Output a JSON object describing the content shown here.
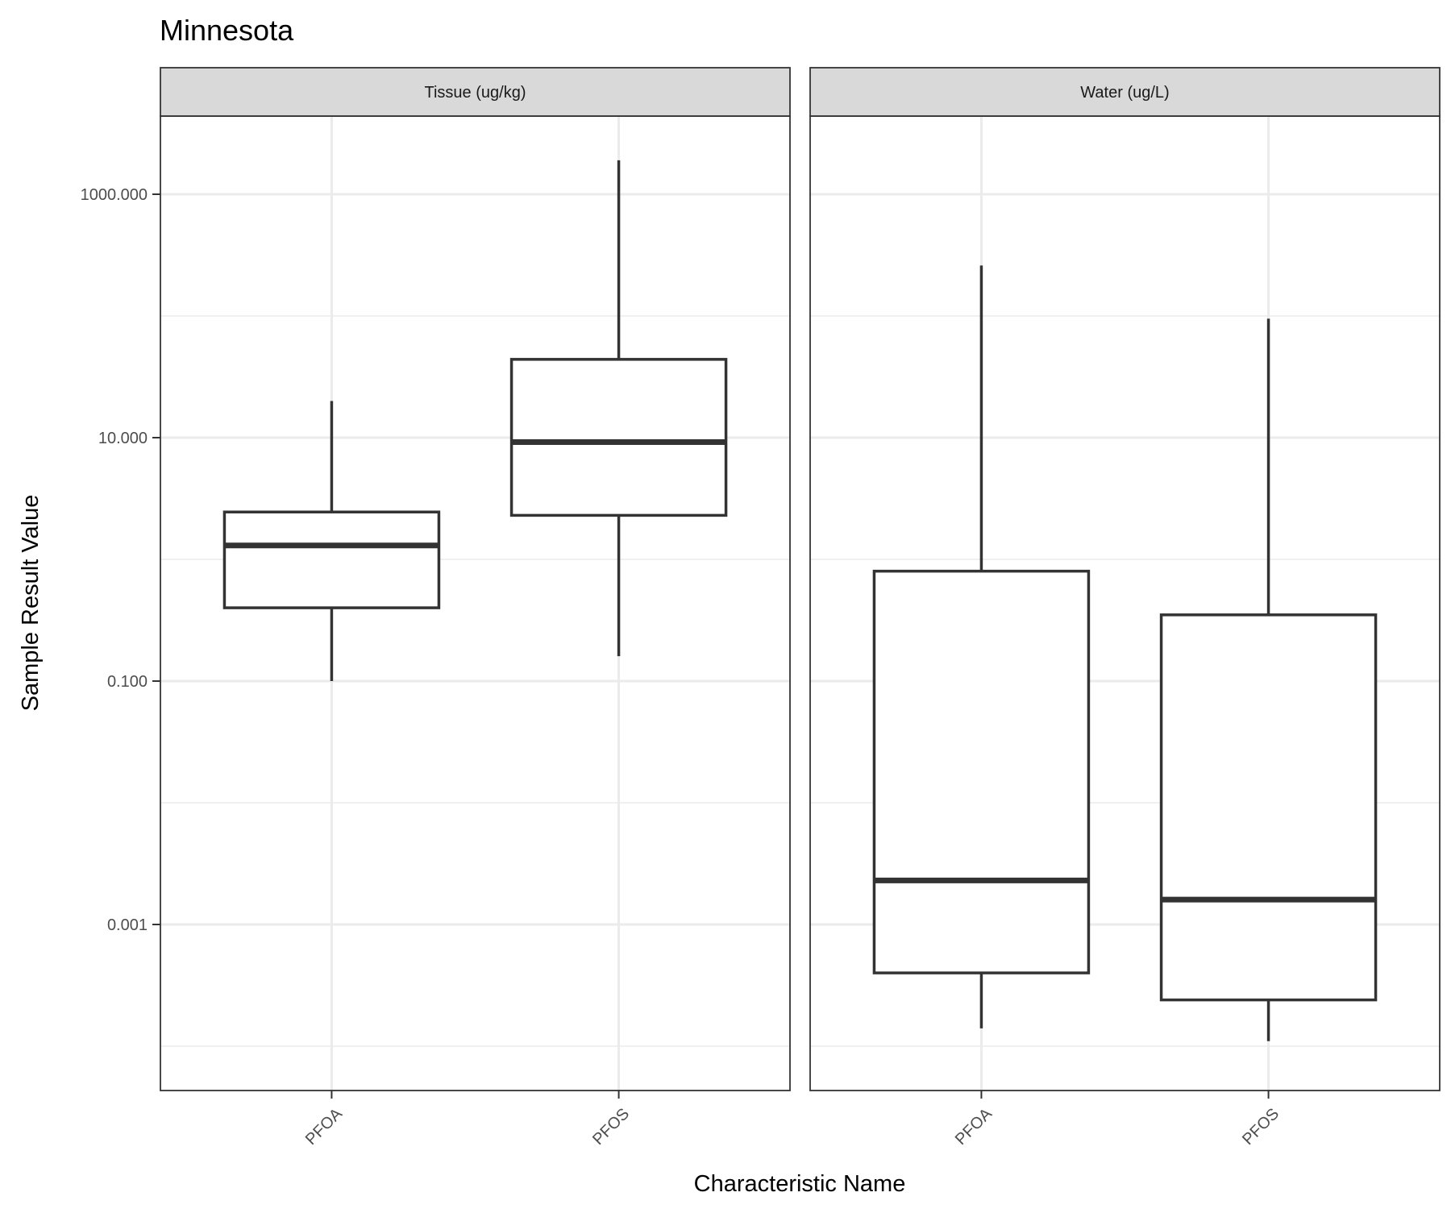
{
  "chart_data": {
    "type": "boxplot",
    "title": "Minnesota",
    "xlabel": "Characteristic Name",
    "ylabel": "Sample Result Value",
    "y_scale": "log10",
    "ylim": [
      5e-05,
      5000
    ],
    "y_ticks": [
      0.001,
      0.1,
      10,
      1000
    ],
    "y_tick_labels": [
      "0.001",
      "0.100",
      "10.000",
      "1000.000"
    ],
    "y_minor_ticks": [
      0.0001,
      0.01,
      1,
      100
    ],
    "grid": true,
    "facets": [
      {
        "label": "Tissue (ug/kg)",
        "categories": [
          "PFOA",
          "PFOS"
        ],
        "boxes": [
          {
            "category": "PFOA",
            "whisker_low": 0.1,
            "q1": 0.4,
            "median": 1.3,
            "q3": 2.45,
            "whisker_high": 20
          },
          {
            "category": "PFOS",
            "whisker_low": 0.16,
            "q1": 2.3,
            "median": 9.2,
            "q3": 44,
            "whisker_high": 1900
          }
        ]
      },
      {
        "label": "Water (ug/L)",
        "categories": [
          "PFOA",
          "PFOS"
        ],
        "boxes": [
          {
            "category": "PFOA",
            "whisker_low": 0.00014,
            "q1": 0.0004,
            "median": 0.0023,
            "q3": 0.8,
            "whisker_high": 260
          },
          {
            "category": "PFOS",
            "whisker_low": 0.00011,
            "q1": 0.00024,
            "median": 0.0016,
            "q3": 0.35,
            "whisker_high": 95
          }
        ]
      }
    ]
  },
  "colors": {
    "box_stroke": "#333333",
    "grid": "#ebebeb",
    "strip_fill": "#d9d9d9",
    "panel_border": "#333333",
    "tick_label": "#4d4d4d"
  }
}
